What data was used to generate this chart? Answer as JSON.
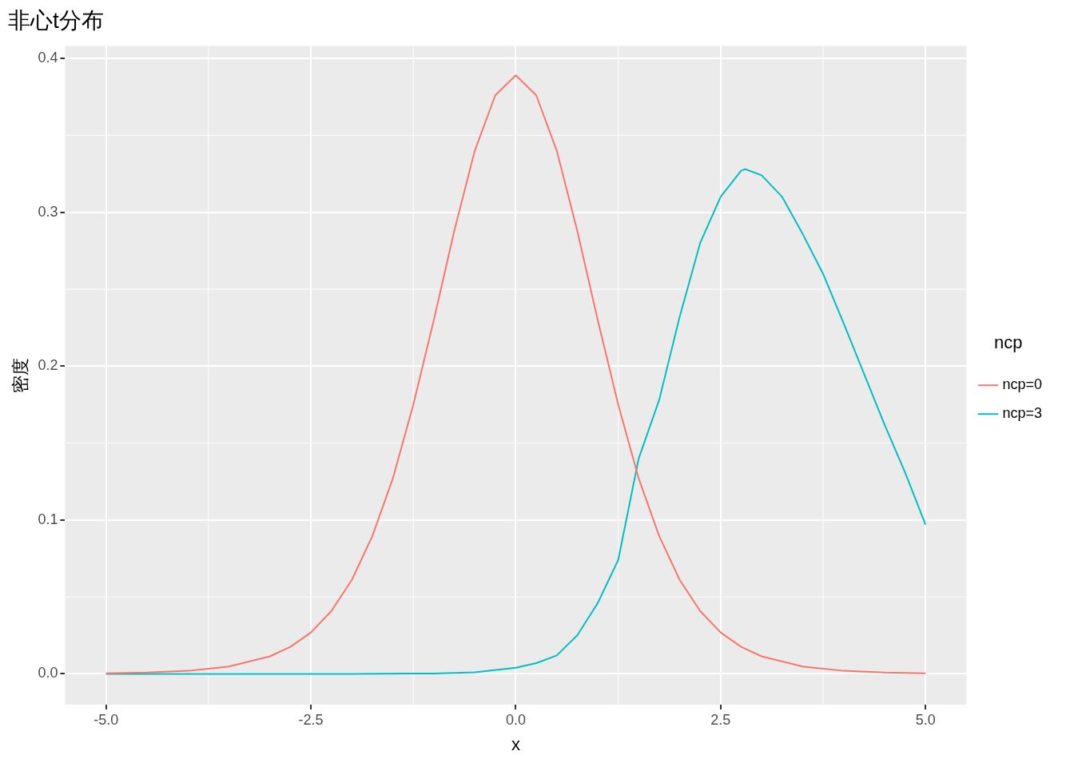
{
  "chart_data": {
    "type": "line",
    "title": "非心t分布",
    "xlabel": "x",
    "ylabel": "密度",
    "legend_title": "ncp",
    "legend": "right",
    "grid": true,
    "marker": "none",
    "line_style": "solid",
    "xlim": [
      -5.5,
      5.5
    ],
    "xticks": [
      {
        "value": -5,
        "label": "-5.0"
      },
      {
        "value": -2.5,
        "label": "-2.5"
      },
      {
        "value": 0,
        "label": "0.0"
      },
      {
        "value": 2.5,
        "label": "2.5"
      },
      {
        "value": 5,
        "label": "5.0"
      }
    ],
    "ylim": [
      -0.02,
      0.408
    ],
    "yticks": [
      {
        "value": 0,
        "label": "0.0"
      },
      {
        "value": 0.1,
        "label": "0.1"
      },
      {
        "value": 0.2,
        "label": "0.2"
      },
      {
        "value": 0.3,
        "label": "0.3"
      },
      {
        "value": 0.4,
        "label": "0.4"
      }
    ],
    "series": [
      {
        "name": "ncp=0",
        "color": "#f8766d",
        "x": [
          -5,
          -4.5,
          -4,
          -3.5,
          -3,
          -2.75,
          -2.5,
          -2.25,
          -2,
          -1.75,
          -1.5,
          -1.25,
          -1,
          -0.75,
          -0.5,
          -0.25,
          0,
          0.25,
          0.5,
          0.75,
          1,
          1.25,
          1.5,
          1.75,
          2,
          2.25,
          2.5,
          2.75,
          3,
          3.5,
          4,
          4.5,
          5
        ],
        "values": [
          0.0004,
          0.0009,
          0.002,
          0.0048,
          0.0114,
          0.0176,
          0.0269,
          0.0409,
          0.0611,
          0.0896,
          0.127,
          0.175,
          0.23,
          0.288,
          0.34,
          0.376,
          0.389,
          0.376,
          0.34,
          0.288,
          0.23,
          0.175,
          0.127,
          0.0896,
          0.0611,
          0.0409,
          0.0269,
          0.0176,
          0.0114,
          0.0048,
          0.002,
          0.0009,
          0.0004
        ]
      },
      {
        "name": "ncp=3",
        "color": "#00bfc4",
        "x": [
          -5,
          -2,
          -1,
          -0.5,
          0,
          0.25,
          0.5,
          0.75,
          1,
          1.25,
          1.5,
          1.75,
          2,
          2.25,
          2.5,
          2.75,
          2.8,
          3,
          3.25,
          3.5,
          3.75,
          4,
          4.25,
          4.5,
          4.75,
          5
        ],
        "values": [
          0,
          0,
          0.0003,
          0.001,
          0.004,
          0.007,
          0.012,
          0.025,
          0.046,
          0.074,
          0.14,
          0.178,
          0.232,
          0.28,
          0.31,
          0.327,
          0.328,
          0.324,
          0.31,
          0.286,
          0.26,
          0.228,
          0.195,
          0.162,
          0.131,
          0.097
        ]
      }
    ]
  }
}
